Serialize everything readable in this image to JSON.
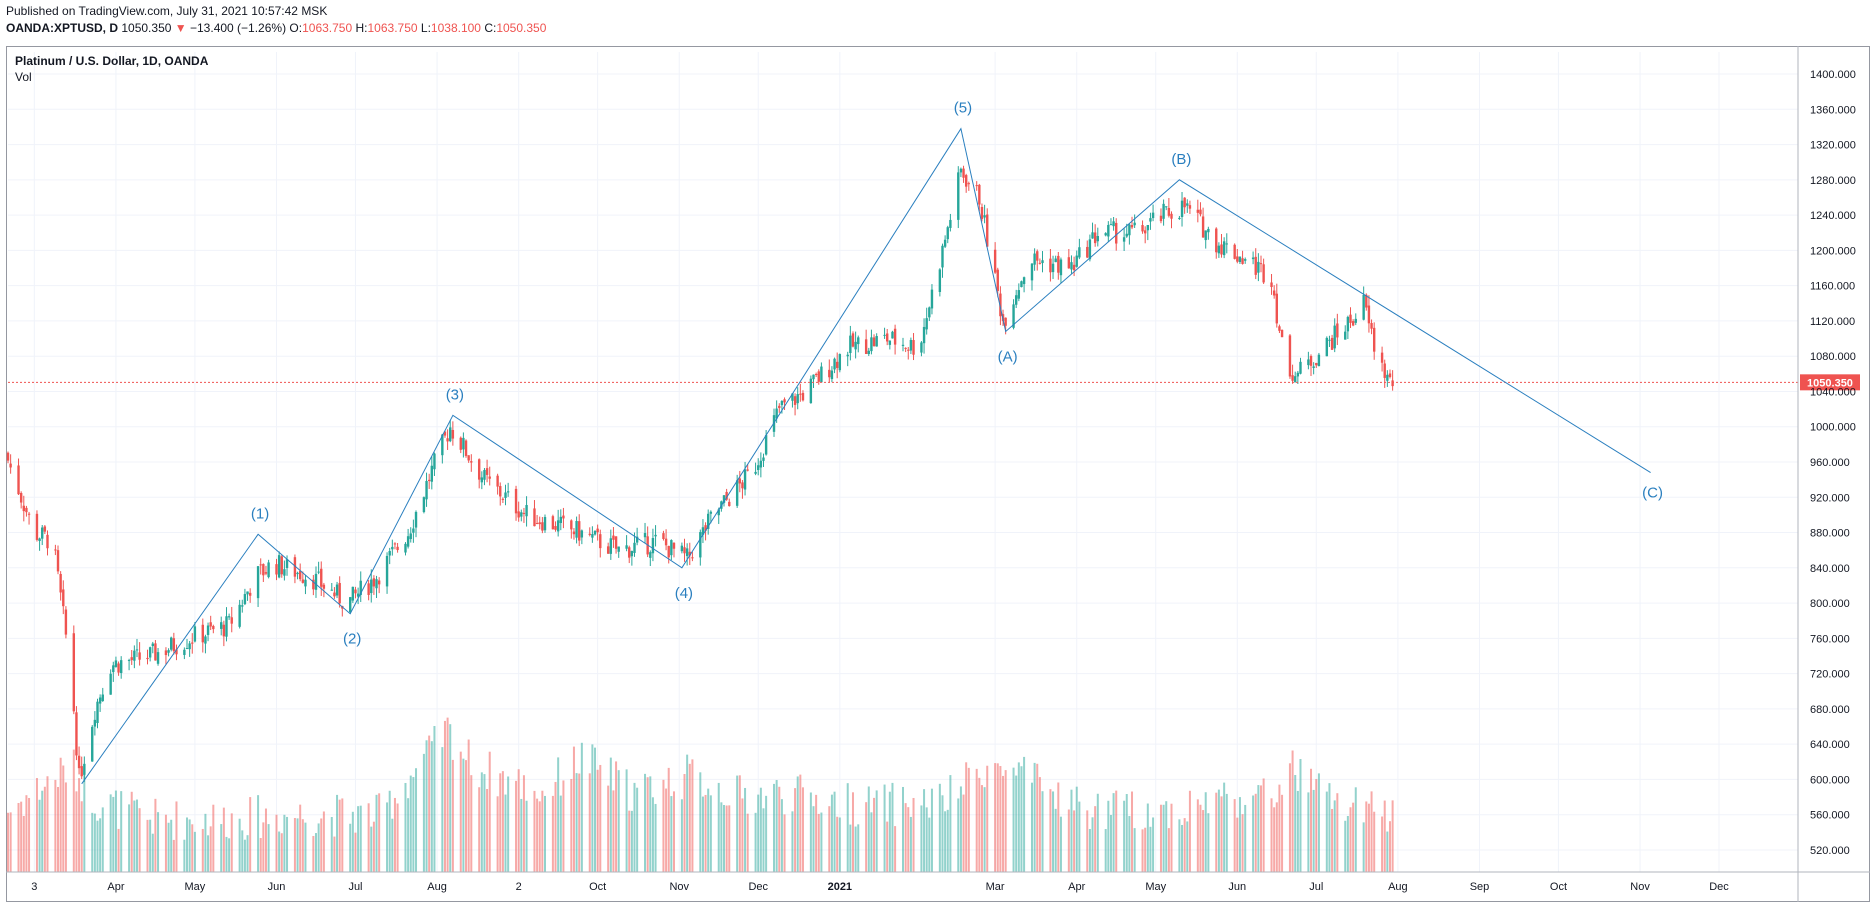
{
  "header": {
    "published": "Published on TradingView.com, July 31, 2021 10:57:42 MSK",
    "symbol": "OANDA:XPTUSD, D",
    "last": "1050.350",
    "arrow": "▼",
    "change": "−13.400 (−1.26%)",
    "o_label": "O:",
    "o": "1063.750",
    "h_label": "H:",
    "h": "1063.750",
    "l_label": "L:",
    "l": "1038.100",
    "c_label": "C:",
    "c": "1050.350"
  },
  "legend": {
    "title": "Platinum / U.S. Dollar, 1D, OANDA",
    "vol": "Vol"
  },
  "colors": {
    "up": "#26a69a",
    "down": "#ef5350",
    "wave": "#2a7fbf",
    "grid": "#f0f3fa",
    "price_line": "#ef5350"
  },
  "chart_data": {
    "type": "candlestick",
    "title": "Platinum / U.S. Dollar, 1D, OANDA",
    "y_ticks": [
      "1400.000",
      "1360.000",
      "1320.000",
      "1280.000",
      "1240.000",
      "1200.000",
      "1160.000",
      "1120.000",
      "1080.000",
      "1040.000",
      "1000.000",
      "960.000",
      "920.000",
      "880.000",
      "840.000",
      "800.000",
      "760.000",
      "720.000",
      "680.000",
      "640.000",
      "600.000",
      "560.000",
      "520.000"
    ],
    "y_tick_values": [
      1400,
      1360,
      1320,
      1280,
      1240,
      1200,
      1160,
      1120,
      1080,
      1040,
      1000,
      960,
      920,
      880,
      840,
      800,
      760,
      720,
      680,
      640,
      600,
      560,
      520
    ],
    "x_ticks": [
      "3",
      "Apr",
      "May",
      "Jun",
      "Jul",
      "Aug",
      "2",
      "Oct",
      "Nov",
      "Dec",
      "2021",
      "Mar",
      "Apr",
      "May",
      "Jun",
      "Jul",
      "Aug",
      "Sep",
      "Oct",
      "Nov",
      "Dec"
    ],
    "x_tick_dates": [
      "2020-03-01",
      "2020-04-01",
      "2020-05-01",
      "2020-06-01",
      "2020-07-01",
      "2020-08-01",
      "2020-09-01",
      "2020-10-01",
      "2020-11-01",
      "2020-12-01",
      "2021-01-01",
      "2021-03-01",
      "2021-04-01",
      "2021-05-01",
      "2021-06-01",
      "2021-07-01",
      "2021-08-01",
      "2021-09-01",
      "2021-10-01",
      "2021-11-01",
      "2021-12-01"
    ],
    "x_range": [
      "2020-02-20",
      "2021-12-31"
    ],
    "y_range": [
      495,
      1425
    ],
    "last_price": "1050.350",
    "last_price_value": 1050.35,
    "price_path": [
      [
        "2020-02-20",
        970
      ],
      [
        "2020-03-02",
        880
      ],
      [
        "2020-03-09",
        870
      ],
      [
        "2020-03-16",
        720
      ],
      [
        "2020-03-19",
        600
      ],
      [
        "2020-03-25",
        680
      ],
      [
        "2020-03-31",
        730
      ],
      [
        "2020-04-15",
        740
      ],
      [
        "2020-04-30",
        760
      ],
      [
        "2020-05-15",
        775
      ],
      [
        "2020-05-25",
        830
      ],
      [
        "2020-06-01",
        845
      ],
      [
        "2020-06-15",
        830
      ],
      [
        "2020-06-29",
        800
      ],
      [
        "2020-07-10",
        830
      ],
      [
        "2020-07-22",
        880
      ],
      [
        "2020-07-31",
        950
      ],
      [
        "2020-08-07",
        1000
      ],
      [
        "2020-08-20",
        940
      ],
      [
        "2020-09-05",
        900
      ],
      [
        "2020-09-25",
        880
      ],
      [
        "2020-10-10",
        860
      ],
      [
        "2020-10-25",
        870
      ],
      [
        "2020-11-05",
        850
      ],
      [
        "2020-11-15",
        900
      ],
      [
        "2020-11-30",
        950
      ],
      [
        "2020-12-10",
        1020
      ],
      [
        "2020-12-20",
        1040
      ],
      [
        "2021-01-05",
        1090
      ],
      [
        "2021-01-20",
        1100
      ],
      [
        "2021-02-01",
        1090
      ],
      [
        "2021-02-10",
        1200
      ],
      [
        "2021-02-17",
        1290
      ],
      [
        "2021-02-24",
        1260
      ],
      [
        "2021-03-05",
        1120
      ],
      [
        "2021-03-15",
        1190
      ],
      [
        "2021-03-31",
        1180
      ],
      [
        "2021-04-10",
        1220
      ],
      [
        "2021-04-25",
        1220
      ],
      [
        "2021-05-05",
        1240
      ],
      [
        "2021-05-13",
        1250
      ],
      [
        "2021-05-25",
        1210
      ],
      [
        "2021-06-05",
        1190
      ],
      [
        "2021-06-15",
        1170
      ],
      [
        "2021-06-20",
        1070
      ],
      [
        "2021-06-25",
        1060
      ],
      [
        "2021-07-05",
        1090
      ],
      [
        "2021-07-15",
        1120
      ],
      [
        "2021-07-20",
        1140
      ],
      [
        "2021-07-25",
        1080
      ],
      [
        "2021-07-30",
        1050
      ]
    ],
    "volume_profile": [
      [
        "2020-02-20",
        560
      ],
      [
        "2020-03-15",
        610
      ],
      [
        "2020-03-25",
        570
      ],
      [
        "2020-04-15",
        550
      ],
      [
        "2020-05-10",
        550
      ],
      [
        "2020-06-10",
        555
      ],
      [
        "2020-07-10",
        555
      ],
      [
        "2020-08-05",
        650
      ],
      [
        "2020-08-15",
        610
      ],
      [
        "2020-09-10",
        580
      ],
      [
        "2020-09-25",
        620
      ],
      [
        "2020-10-15",
        580
      ],
      [
        "2020-11-05",
        600
      ],
      [
        "2020-11-25",
        575
      ],
      [
        "2020-12-10",
        580
      ],
      [
        "2021-01-10",
        565
      ],
      [
        "2021-02-10",
        570
      ],
      [
        "2021-02-25",
        610
      ],
      [
        "2021-03-10",
        600
      ],
      [
        "2021-04-05",
        560
      ],
      [
        "2021-05-10",
        560
      ],
      [
        "2021-05-25",
        575
      ],
      [
        "2021-06-15",
        575
      ],
      [
        "2021-06-20",
        610
      ],
      [
        "2021-07-10",
        565
      ],
      [
        "2021-07-30",
        555
      ]
    ],
    "wave_points": [
      {
        "label": "",
        "date": "2020-03-19",
        "value": 595
      },
      {
        "label": "(1)",
        "date": "2020-05-25",
        "value": 878
      },
      {
        "label": "(2)",
        "date": "2020-06-29",
        "value": 788
      },
      {
        "label": "(3)",
        "date": "2020-08-07",
        "value": 1013
      },
      {
        "label": "(4)",
        "date": "2020-11-02",
        "value": 840
      },
      {
        "label": "(5)",
        "date": "2021-02-16",
        "value": 1338
      },
      {
        "label": "(A)",
        "date": "2021-03-05",
        "value": 1108
      },
      {
        "label": "(B)",
        "date": "2021-05-10",
        "value": 1280
      },
      {
        "label": "(C)",
        "date": "2021-11-05",
        "value": 948
      }
    ]
  }
}
